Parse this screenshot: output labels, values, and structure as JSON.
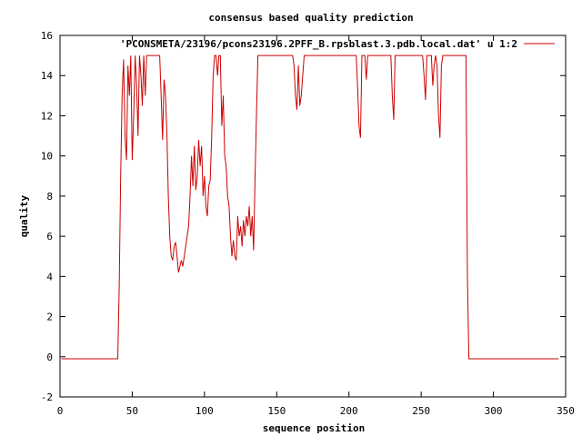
{
  "chart_data": {
    "type": "line",
    "title": "consensus based quality prediction",
    "xlabel": "sequence position",
    "ylabel": "quality",
    "xlim": [
      0,
      350
    ],
    "ylim": [
      -2,
      16
    ],
    "xticks": [
      0,
      50,
      100,
      150,
      200,
      250,
      300,
      350
    ],
    "yticks": [
      -2,
      0,
      2,
      4,
      6,
      8,
      10,
      12,
      14,
      16
    ],
    "grid": false,
    "legend_position": "top-right",
    "series": [
      {
        "name": "'PCONSMETA/23196/pcons23196.2PFF_B.rpsblast.3.pdb.local.dat' u 1:2",
        "color": "#cc0000",
        "points": [
          [
            1,
            -0.1
          ],
          [
            40,
            -0.1
          ],
          [
            41,
            3.5
          ],
          [
            42,
            9
          ],
          [
            43,
            13
          ],
          [
            44,
            14.8
          ],
          [
            45,
            11
          ],
          [
            46,
            9.8
          ],
          [
            47,
            14.5
          ],
          [
            48,
            13
          ],
          [
            49,
            15
          ],
          [
            50,
            9.8
          ],
          [
            51,
            12
          ],
          [
            52,
            15
          ],
          [
            53,
            13.5
          ],
          [
            54,
            11
          ],
          [
            55,
            15
          ],
          [
            56,
            14
          ],
          [
            57,
            12.5
          ],
          [
            58,
            15
          ],
          [
            59,
            13
          ],
          [
            60,
            15
          ],
          [
            61,
            15
          ],
          [
            62,
            15
          ],
          [
            63,
            15
          ],
          [
            64,
            15
          ],
          [
            65,
            15
          ],
          [
            66,
            15
          ],
          [
            67,
            15
          ],
          [
            68,
            15
          ],
          [
            69,
            15
          ],
          [
            70,
            13
          ],
          [
            71,
            10.8
          ],
          [
            72,
            13.8
          ],
          [
            73,
            13
          ],
          [
            74,
            11
          ],
          [
            75,
            8
          ],
          [
            76,
            6
          ],
          [
            77,
            5
          ],
          [
            78,
            4.8
          ],
          [
            79,
            5.5
          ],
          [
            80,
            5.7
          ],
          [
            81,
            5
          ],
          [
            82,
            4.2
          ],
          [
            83,
            4.5
          ],
          [
            84,
            4.8
          ],
          [
            85,
            4.5
          ],
          [
            86,
            5
          ],
          [
            87,
            5.5
          ],
          [
            88,
            6
          ],
          [
            89,
            6.5
          ],
          [
            90,
            8
          ],
          [
            91,
            10
          ],
          [
            92,
            8.5
          ],
          [
            93,
            10.5
          ],
          [
            94,
            8.3
          ],
          [
            95,
            9
          ],
          [
            96,
            10.8
          ],
          [
            97,
            9.5
          ],
          [
            98,
            10.5
          ],
          [
            99,
            8
          ],
          [
            100,
            9
          ],
          [
            101,
            7.5
          ],
          [
            102,
            7
          ],
          [
            103,
            8.5
          ],
          [
            104,
            8.8
          ],
          [
            105,
            11
          ],
          [
            106,
            14
          ],
          [
            107,
            15
          ],
          [
            108,
            15
          ],
          [
            109,
            14
          ],
          [
            110,
            15
          ],
          [
            111,
            15
          ],
          [
            112,
            11.5
          ],
          [
            113,
            13
          ],
          [
            114,
            10
          ],
          [
            115,
            9.5
          ],
          [
            116,
            8
          ],
          [
            117,
            7.5
          ],
          [
            118,
            6
          ],
          [
            119,
            5
          ],
          [
            120,
            5.8
          ],
          [
            121,
            5
          ],
          [
            122,
            4.8
          ],
          [
            123,
            7
          ],
          [
            124,
            6
          ],
          [
            125,
            6.5
          ],
          [
            126,
            5.5
          ],
          [
            127,
            6.8
          ],
          [
            128,
            6
          ],
          [
            129,
            7
          ],
          [
            130,
            6.5
          ],
          [
            131,
            7.5
          ],
          [
            132,
            6
          ],
          [
            133,
            7
          ],
          [
            134,
            5.3
          ],
          [
            135,
            9
          ],
          [
            136,
            12
          ],
          [
            137,
            15
          ],
          [
            138,
            15
          ],
          [
            139,
            15
          ],
          [
            140,
            15
          ],
          [
            145,
            15
          ],
          [
            150,
            15
          ],
          [
            155,
            15
          ],
          [
            160,
            15
          ],
          [
            161,
            15
          ],
          [
            162,
            14.5
          ],
          [
            163,
            13
          ],
          [
            164,
            12.3
          ],
          [
            165,
            14.5
          ],
          [
            166,
            12.5
          ],
          [
            167,
            13
          ],
          [
            168,
            14
          ],
          [
            169,
            15
          ],
          [
            170,
            15
          ],
          [
            175,
            15
          ],
          [
            180,
            15
          ],
          [
            185,
            15
          ],
          [
            190,
            15
          ],
          [
            195,
            15
          ],
          [
            200,
            15
          ],
          [
            205,
            15
          ],
          [
            206,
            13.5
          ],
          [
            207,
            11.5
          ],
          [
            208,
            10.9
          ],
          [
            209,
            15
          ],
          [
            210,
            15
          ],
          [
            211,
            15
          ],
          [
            212,
            13.8
          ],
          [
            213,
            15
          ],
          [
            215,
            15
          ],
          [
            220,
            15
          ],
          [
            225,
            15
          ],
          [
            229,
            15
          ],
          [
            230,
            13
          ],
          [
            231,
            11.8
          ],
          [
            232,
            15
          ],
          [
            235,
            15
          ],
          [
            240,
            15
          ],
          [
            245,
            15
          ],
          [
            250,
            15
          ],
          [
            251,
            15
          ],
          [
            252,
            14
          ],
          [
            253,
            12.8
          ],
          [
            254,
            15
          ],
          [
            255,
            15
          ],
          [
            256,
            15
          ],
          [
            257,
            15
          ],
          [
            258,
            13.5
          ],
          [
            259,
            14.5
          ],
          [
            260,
            15
          ],
          [
            261,
            14.5
          ],
          [
            262,
            12
          ],
          [
            263,
            10.9
          ],
          [
            264,
            14.5
          ],
          [
            265,
            15
          ],
          [
            270,
            15
          ],
          [
            275,
            15
          ],
          [
            280,
            15
          ],
          [
            281,
            15
          ],
          [
            282,
            4
          ],
          [
            283,
            -0.1
          ],
          [
            290,
            -0.1
          ],
          [
            300,
            -0.1
          ],
          [
            320,
            -0.1
          ],
          [
            345,
            -0.1
          ]
        ]
      }
    ]
  }
}
